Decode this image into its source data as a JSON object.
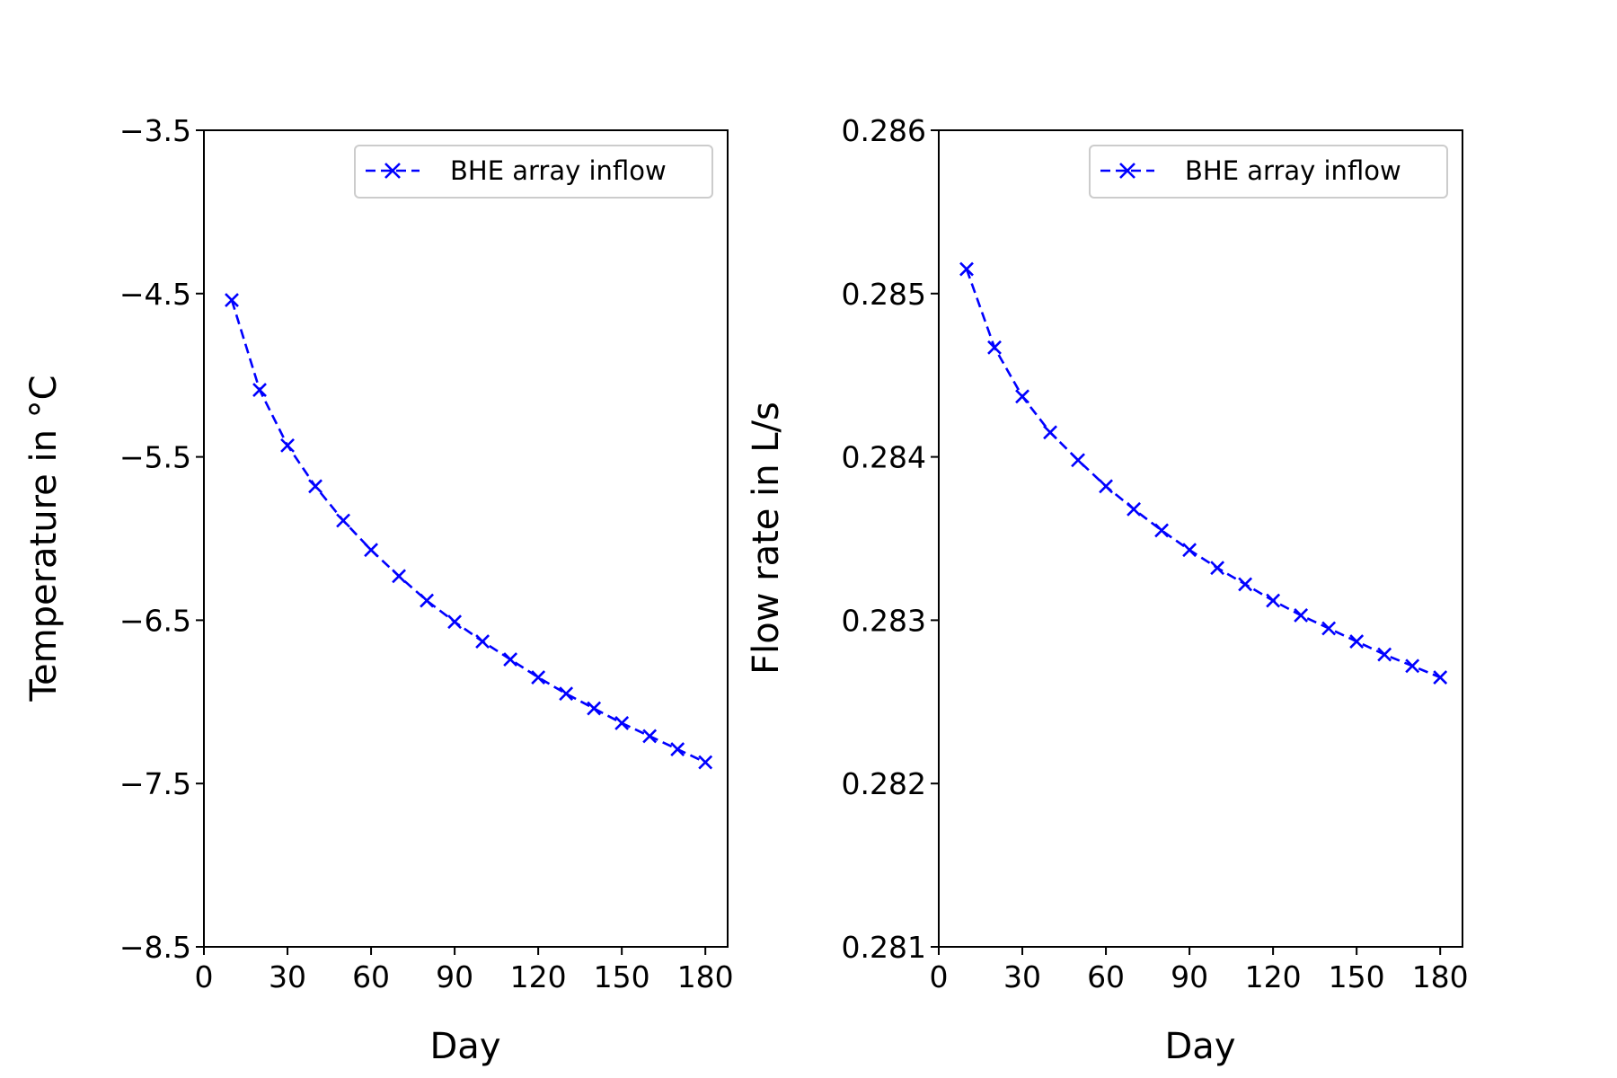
{
  "chart_data": [
    {
      "type": "line",
      "ylabel": "Temperature in $^\\circ$C",
      "ylabel_display": "Temperature in °C",
      "xlabel": "Day",
      "xlim": [
        0,
        188
      ],
      "ylim": [
        -8.5,
        -3.5
      ],
      "xticks": [
        0,
        30,
        60,
        90,
        120,
        150,
        180
      ],
      "xtick_labels": [
        "0",
        "30",
        "60",
        "90",
        "120",
        "150",
        "180"
      ],
      "yticks": [
        -3.5,
        -4.5,
        -5.5,
        -6.5,
        -7.5,
        -8.5
      ],
      "ytick_labels": [
        "−3.5",
        "−4.5",
        "−5.5",
        "−6.5",
        "−7.5",
        "−8.5"
      ],
      "legend_position": "upper right",
      "grid": false,
      "series": [
        {
          "name": "BHE array inflow",
          "color": "#0000ff",
          "linestyle": "dashed",
          "marker": "x",
          "x": [
            10,
            20,
            30,
            40,
            50,
            60,
            70,
            80,
            90,
            100,
            110,
            120,
            130,
            140,
            150,
            160,
            170,
            180
          ],
          "y": [
            -4.54,
            -5.09,
            -5.43,
            -5.68,
            -5.89,
            -6.07,
            -6.23,
            -6.38,
            -6.51,
            -6.63,
            -6.74,
            -6.85,
            -6.95,
            -7.04,
            -7.13,
            -7.21,
            -7.29,
            -7.37
          ]
        }
      ]
    },
    {
      "type": "line",
      "ylabel": "Flow rate in L/s",
      "xlabel": "Day",
      "xlim": [
        0,
        188
      ],
      "ylim": [
        0.281,
        0.286
      ],
      "xticks": [
        0,
        30,
        60,
        90,
        120,
        150,
        180
      ],
      "xtick_labels": [
        "0",
        "30",
        "60",
        "90",
        "120",
        "150",
        "180"
      ],
      "yticks": [
        0.286,
        0.285,
        0.284,
        0.283,
        0.282,
        0.281
      ],
      "ytick_labels": [
        "0.286",
        "0.285",
        "0.284",
        "0.283",
        "0.282",
        "0.281"
      ],
      "legend_position": "upper right",
      "grid": false,
      "series": [
        {
          "name": "BHE array inflow",
          "color": "#0000ff",
          "linestyle": "dashed",
          "marker": "x",
          "x": [
            10,
            20,
            30,
            40,
            50,
            60,
            70,
            80,
            90,
            100,
            110,
            120,
            130,
            140,
            150,
            160,
            170,
            180
          ],
          "y": [
            0.28515,
            0.28467,
            0.28437,
            0.28415,
            0.28398,
            0.28382,
            0.28368,
            0.28355,
            0.28343,
            0.28332,
            0.28322,
            0.28312,
            0.28303,
            0.28295,
            0.28287,
            0.28279,
            0.28272,
            0.28265
          ]
        }
      ]
    }
  ]
}
